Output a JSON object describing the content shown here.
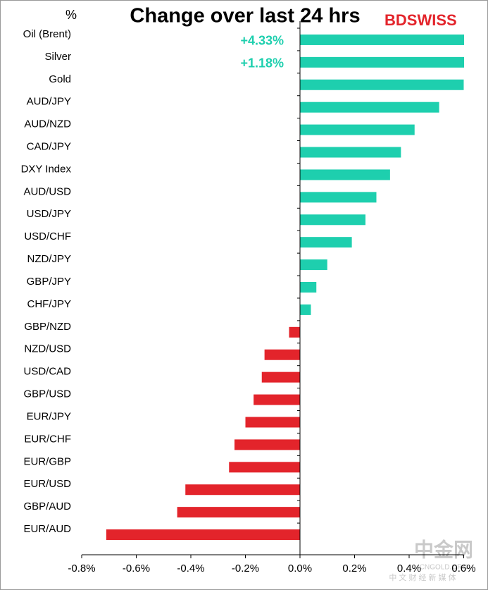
{
  "chart_data": {
    "type": "hbar",
    "title": "Change over last 24 hrs",
    "y_unit_label": "%",
    "logo": "BDSWISS",
    "watermark": {
      "name": "中金网",
      "site": "CNGOLD.ORG",
      "slogan": "中 文 财 经 新 媒 体"
    },
    "categories": [
      "Oil (Brent)",
      "Silver",
      "Gold",
      "AUD/JPY",
      "AUD/NZD",
      "CAD/JPY",
      "DXY Index",
      "AUD/USD",
      "USD/JPY",
      "USD/CHF",
      "NZD/JPY",
      "GBP/JPY",
      "CHF/JPY",
      "GBP/NZD",
      "NZD/USD",
      "USD/CAD",
      "GBP/USD",
      "EUR/JPY",
      "EUR/CHF",
      "EUR/GBP",
      "EUR/USD",
      "GBP/AUD",
      "EUR/AUD"
    ],
    "values": [
      4.33,
      1.18,
      0.6,
      0.51,
      0.42,
      0.37,
      0.33,
      0.28,
      0.24,
      0.19,
      0.1,
      0.06,
      0.04,
      -0.04,
      -0.13,
      -0.14,
      -0.17,
      -0.2,
      -0.24,
      -0.26,
      -0.42,
      -0.45,
      -0.71
    ],
    "value_labels": [
      "+4.33%",
      "+1.18%",
      null,
      null,
      null,
      null,
      null,
      null,
      null,
      null,
      null,
      null,
      null,
      null,
      null,
      null,
      null,
      null,
      null,
      null,
      null,
      null,
      null
    ],
    "positive_color": "#1ecfae",
    "negative_color": "#e3242b",
    "xlim": [
      -0.8,
      0.6
    ],
    "xticks": [
      {
        "value": -0.8,
        "label": "-0.8%"
      },
      {
        "value": -0.6,
        "label": "-0.6%"
      },
      {
        "value": -0.4,
        "label": "-0.4%"
      },
      {
        "value": -0.2,
        "label": "-0.2%"
      },
      {
        "value": 0.0,
        "label": "0.0%"
      },
      {
        "value": 0.2,
        "label": "0.2%"
      },
      {
        "value": 0.4,
        "label": "0.4%"
      },
      {
        "value": 0.6,
        "label": "0.6%"
      }
    ]
  }
}
